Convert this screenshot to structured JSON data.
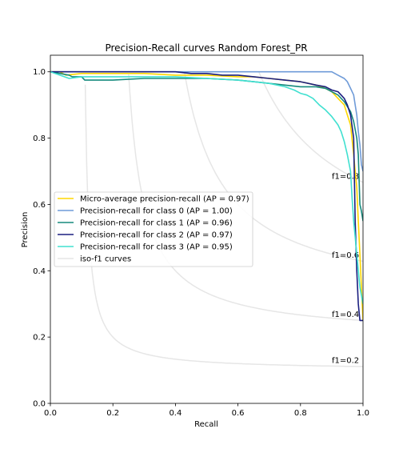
{
  "chart_data": {
    "type": "line",
    "title": "Precision-Recall curves Random Forest_PR",
    "xlabel": "Recall",
    "ylabel": "Precision",
    "xlim": [
      0.0,
      1.0
    ],
    "ylim": [
      0.0,
      1.05
    ],
    "xticks": [
      "0.0",
      "0.2",
      "0.4",
      "0.6",
      "0.8",
      "1.0"
    ],
    "yticks": [
      "0.0",
      "0.2",
      "0.4",
      "0.6",
      "0.8",
      "1.0"
    ],
    "grid": false,
    "legend_position": "center-left",
    "iso_f1": [
      {
        "f": 0.2,
        "label": "f1=0.2"
      },
      {
        "f": 0.4,
        "label": "f1=0.4"
      },
      {
        "f": 0.6,
        "label": "f1=0.6"
      },
      {
        "f": 0.8,
        "label": "f1=0.8"
      }
    ],
    "series": [
      {
        "name": "Micro-average precision-recall (AP = 0.97)",
        "color": "#ffd700",
        "points": [
          [
            0,
            1.0
          ],
          [
            0.03,
            1.0
          ],
          [
            0.05,
            0.99
          ],
          [
            0.1,
            0.995
          ],
          [
            0.2,
            0.995
          ],
          [
            0.3,
            0.995
          ],
          [
            0.4,
            0.99
          ],
          [
            0.5,
            0.99
          ],
          [
            0.6,
            0.985
          ],
          [
            0.65,
            0.985
          ],
          [
            0.7,
            0.98
          ],
          [
            0.75,
            0.975
          ],
          [
            0.8,
            0.97
          ],
          [
            0.85,
            0.96
          ],
          [
            0.88,
            0.95
          ],
          [
            0.9,
            0.94
          ],
          [
            0.92,
            0.92
          ],
          [
            0.94,
            0.9
          ],
          [
            0.95,
            0.87
          ],
          [
            0.96,
            0.84
          ],
          [
            0.97,
            0.75
          ],
          [
            0.98,
            0.65
          ],
          [
            0.985,
            0.55
          ],
          [
            0.99,
            0.45
          ],
          [
            0.995,
            0.35
          ],
          [
            1.0,
            0.25
          ]
        ]
      },
      {
        "name": "Precision-recall for class 0 (AP = 1.00)",
        "color": "#6f9bd8",
        "points": [
          [
            0,
            1.0
          ],
          [
            0.3,
            1.0
          ],
          [
            0.5,
            1.0
          ],
          [
            0.7,
            1.0
          ],
          [
            0.85,
            1.0
          ],
          [
            0.9,
            1.0
          ],
          [
            0.92,
            0.99
          ],
          [
            0.94,
            0.98
          ],
          [
            0.95,
            0.97
          ],
          [
            0.96,
            0.95
          ],
          [
            0.97,
            0.93
          ],
          [
            0.975,
            0.9
          ],
          [
            0.98,
            0.87
          ],
          [
            0.985,
            0.82
          ],
          [
            0.99,
            0.78
          ],
          [
            0.995,
            0.72
          ],
          [
            1.0,
            0.7
          ]
        ]
      },
      {
        "name": "Precision-recall for class 1 (AP = 0.96)",
        "color": "#168a7d",
        "points": [
          [
            0,
            1.0
          ],
          [
            0.06,
            0.99
          ],
          [
            0.07,
            0.985
          ],
          [
            0.1,
            0.985
          ],
          [
            0.11,
            0.975
          ],
          [
            0.2,
            0.975
          ],
          [
            0.3,
            0.98
          ],
          [
            0.4,
            0.98
          ],
          [
            0.5,
            0.98
          ],
          [
            0.6,
            0.975
          ],
          [
            0.65,
            0.97
          ],
          [
            0.7,
            0.965
          ],
          [
            0.75,
            0.96
          ],
          [
            0.8,
            0.955
          ],
          [
            0.85,
            0.955
          ],
          [
            0.88,
            0.95
          ],
          [
            0.9,
            0.94
          ],
          [
            0.92,
            0.93
          ],
          [
            0.94,
            0.91
          ],
          [
            0.96,
            0.88
          ],
          [
            0.97,
            0.85
          ],
          [
            0.98,
            0.8
          ],
          [
            0.985,
            0.75
          ],
          [
            0.99,
            0.6
          ],
          [
            0.995,
            0.58
          ],
          [
            1.0,
            0.55
          ]
        ]
      },
      {
        "name": "Precision-recall for class 2 (AP = 0.97)",
        "color": "#1b1f80",
        "points": [
          [
            0,
            1.0
          ],
          [
            0.2,
            1.0
          ],
          [
            0.4,
            1.0
          ],
          [
            0.45,
            0.995
          ],
          [
            0.5,
            0.995
          ],
          [
            0.55,
            0.99
          ],
          [
            0.6,
            0.99
          ],
          [
            0.65,
            0.985
          ],
          [
            0.7,
            0.98
          ],
          [
            0.75,
            0.975
          ],
          [
            0.8,
            0.97
          ],
          [
            0.85,
            0.96
          ],
          [
            0.88,
            0.955
          ],
          [
            0.9,
            0.945
          ],
          [
            0.92,
            0.94
          ],
          [
            0.93,
            0.93
          ],
          [
            0.94,
            0.92
          ],
          [
            0.95,
            0.9
          ],
          [
            0.96,
            0.87
          ],
          [
            0.97,
            0.8
          ],
          [
            0.975,
            0.55
          ],
          [
            0.98,
            0.4
          ],
          [
            0.985,
            0.3
          ],
          [
            0.99,
            0.25
          ],
          [
            1.0,
            0.25
          ]
        ]
      },
      {
        "name": "Precision-recall for class 3 (AP = 0.95)",
        "color": "#40e0d0",
        "points": [
          [
            0,
            1.0
          ],
          [
            0.06,
            0.98
          ],
          [
            0.1,
            0.985
          ],
          [
            0.2,
            0.985
          ],
          [
            0.3,
            0.985
          ],
          [
            0.4,
            0.985
          ],
          [
            0.5,
            0.98
          ],
          [
            0.6,
            0.975
          ],
          [
            0.65,
            0.97
          ],
          [
            0.7,
            0.965
          ],
          [
            0.75,
            0.955
          ],
          [
            0.78,
            0.945
          ],
          [
            0.8,
            0.935
          ],
          [
            0.82,
            0.93
          ],
          [
            0.84,
            0.92
          ],
          [
            0.86,
            0.9
          ],
          [
            0.88,
            0.885
          ],
          [
            0.9,
            0.865
          ],
          [
            0.92,
            0.84
          ],
          [
            0.93,
            0.82
          ],
          [
            0.94,
            0.79
          ],
          [
            0.95,
            0.75
          ],
          [
            0.96,
            0.7
          ],
          [
            0.965,
            0.62
          ],
          [
            0.97,
            0.55
          ],
          [
            0.98,
            0.45
          ],
          [
            0.99,
            0.35
          ],
          [
            1.0,
            0.3
          ]
        ]
      }
    ],
    "iso_legend_label": "iso-f1 curves",
    "iso_color": "#e6e6e6"
  }
}
